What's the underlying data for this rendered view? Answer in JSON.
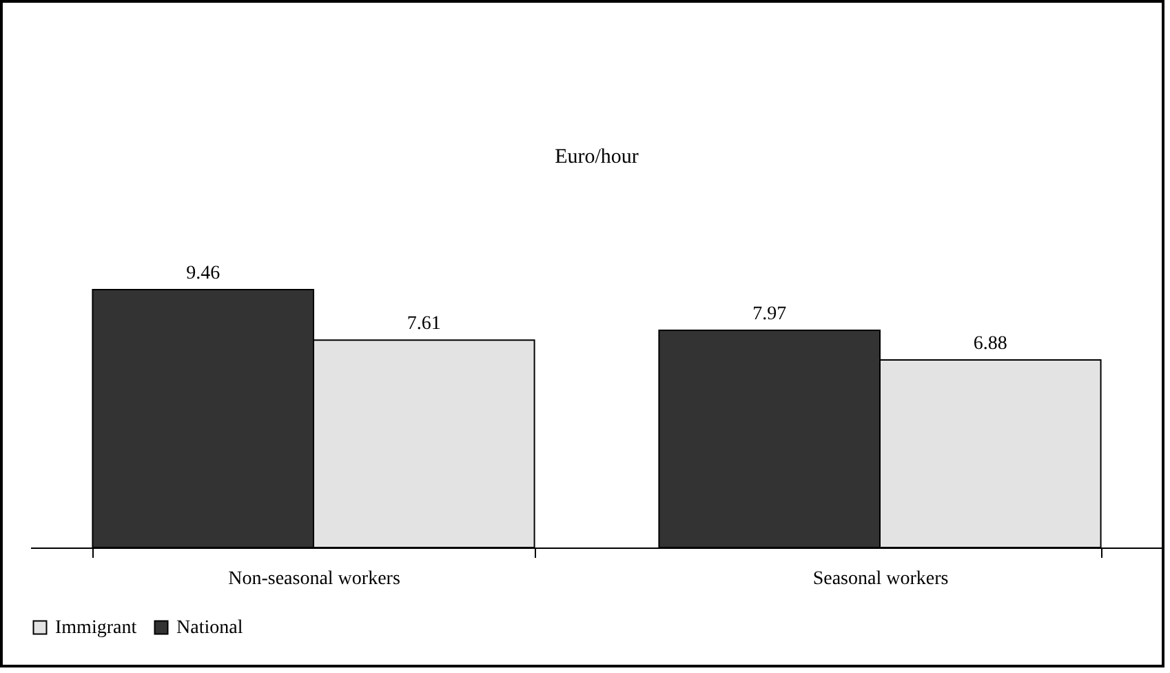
{
  "chart_data": {
    "type": "bar",
    "title": "Euro/hour",
    "categories": [
      "Non-seasonal workers",
      "Seasonal workers"
    ],
    "series": [
      {
        "name": "National",
        "color": "#333333",
        "values": [
          9.46,
          7.97
        ]
      },
      {
        "name": "Immigrant",
        "color": "#e3e3e3",
        "values": [
          7.61,
          6.88
        ]
      }
    ],
    "data_labels": true,
    "legend": "bottom",
    "grid": false
  }
}
